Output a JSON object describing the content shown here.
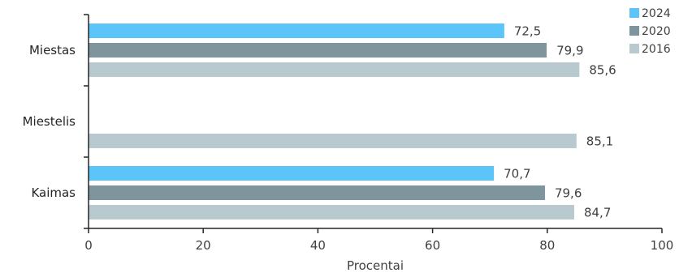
{
  "chart_data": {
    "type": "bar",
    "orientation": "horizontal",
    "categories": [
      "Miestas",
      "Miestelis",
      "Kaimas"
    ],
    "series": [
      {
        "name": "2024",
        "color": "#5BC4F9",
        "values": [
          72.5,
          null,
          70.7
        ],
        "labels": [
          "72,5",
          "",
          "70,7"
        ]
      },
      {
        "name": "2020",
        "color": "#7F959E",
        "values": [
          79.9,
          null,
          79.6
        ],
        "labels": [
          "79,9",
          "",
          "79,6"
        ]
      },
      {
        "name": "2016",
        "color": "#B9C9D0",
        "values": [
          85.6,
          85.1,
          84.7
        ],
        "labels": [
          "85,6",
          "85,1",
          "84,7"
        ]
      }
    ],
    "xlabel": "Procentai",
    "xlim": [
      0,
      100
    ],
    "xticks": [
      0,
      20,
      40,
      60,
      80,
      100
    ],
    "legend_position": "top-right",
    "grid": false
  }
}
